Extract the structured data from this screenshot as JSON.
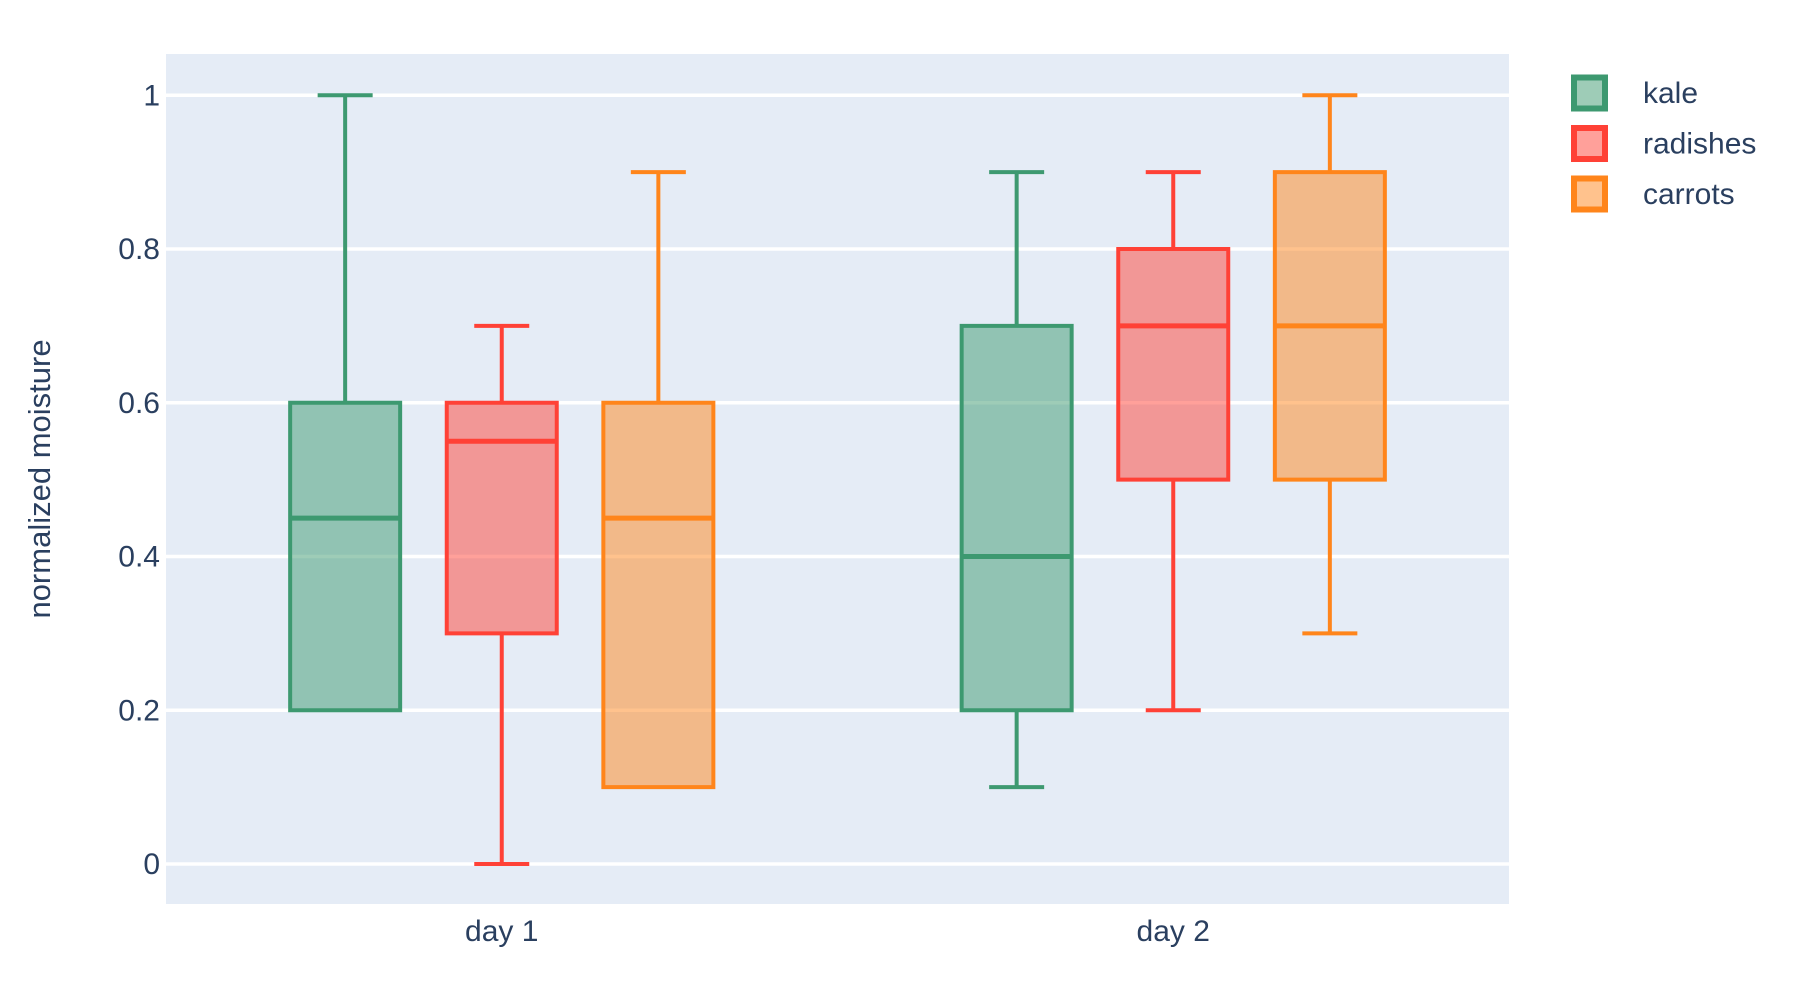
{
  "figure": {
    "background_color": "#FFFFFF",
    "plot_background_color": "#E5ECF6",
    "grid_color": "#FFFFFF",
    "font_color": "#2A3F5F"
  },
  "chart_data": {
    "type": "box",
    "title": "",
    "xlabel": "",
    "ylabel": "normalized moisture",
    "categories": [
      "day 1",
      "day 2"
    ],
    "ytick_values": [
      0,
      0.2,
      0.4,
      0.6,
      0.8,
      1
    ],
    "ytick_labels": [
      "0",
      "0.2",
      "0.4",
      "0.6",
      "0.8",
      "1"
    ],
    "ylim": [
      -0.052,
      1.055
    ],
    "grid": true,
    "legend_position": "top-right",
    "series": [
      {
        "name": "kale",
        "color": "#3D9970",
        "boxes": [
          {
            "category": "day 1",
            "min": 0.2,
            "q1": 0.2,
            "median": 0.45,
            "q3": 0.6,
            "max": 1.0
          },
          {
            "category": "day 2",
            "min": 0.1,
            "q1": 0.2,
            "median": 0.4,
            "q3": 0.7,
            "max": 0.9
          }
        ]
      },
      {
        "name": "radishes",
        "color": "#FF4136",
        "boxes": [
          {
            "category": "day 1",
            "min": 0.0,
            "q1": 0.3,
            "median": 0.55,
            "q3": 0.6,
            "max": 0.7
          },
          {
            "category": "day 2",
            "min": 0.2,
            "q1": 0.5,
            "median": 0.7,
            "q3": 0.8,
            "max": 0.9
          }
        ]
      },
      {
        "name": "carrots",
        "color": "#FF851B",
        "boxes": [
          {
            "category": "day 1",
            "min": 0.1,
            "q1": 0.1,
            "median": 0.45,
            "q3": 0.6,
            "max": 0.9
          },
          {
            "category": "day 2",
            "min": 0.3,
            "q1": 0.5,
            "median": 0.7,
            "q3": 0.9,
            "max": 1.0
          }
        ]
      }
    ]
  }
}
